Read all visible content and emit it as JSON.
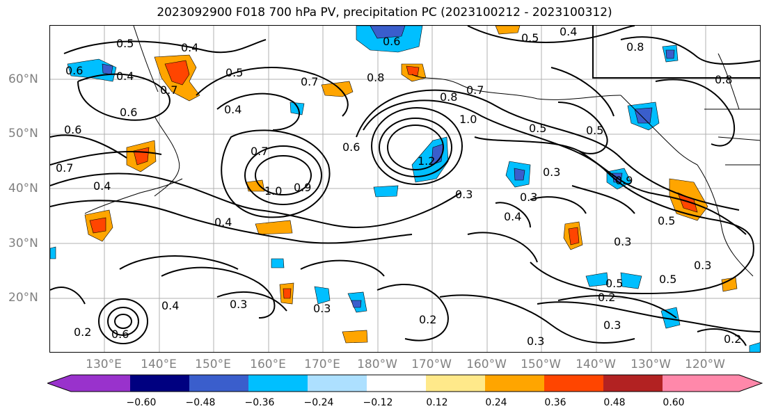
{
  "title": "2023092900 F018 700 hPa PV, precipitation PC (2023100212 - 2023100312)",
  "lat_labels": [
    "60°N",
    "50°N",
    "40°N",
    "30°N",
    "20°N"
  ],
  "lon_labels": [
    "130°E",
    "140°E",
    "150°E",
    "160°E",
    "170°E",
    "180°W",
    "170°W",
    "160°W",
    "150°W",
    "140°W",
    "130°W",
    "120°W"
  ],
  "contour_labels": [
    "0.5",
    "0.4",
    "0.6",
    "0.4",
    "0.7",
    "0.5",
    "0.4",
    "0.7",
    "0.8",
    "0.8",
    "0.7",
    "0.5",
    "0.4",
    "0.6",
    "0.8",
    "0.5",
    "0.6",
    "0.7",
    "0.4",
    "0.6",
    "0.7",
    "1.0",
    "0.9",
    "0.4",
    "0.6",
    "1.0",
    "1.2",
    "0.3",
    "0.5",
    "0.3",
    "0.3",
    "0.4",
    "0.3",
    "0.5",
    "0.3",
    "0.5",
    "0.2",
    "0.3",
    "0.3",
    "0.2",
    "0.3",
    "0.2",
    "0.3",
    "0.8",
    "0.5",
    "0.2",
    "0.6",
    "0.4",
    "0.9"
  ],
  "colorbar": {
    "ticks": [
      "−0.60",
      "−0.48",
      "−0.36",
      "−0.24",
      "−0.12",
      "0.12",
      "0.24",
      "0.36",
      "0.48",
      "0.60"
    ],
    "colors": [
      "#9932CC",
      "#000080",
      "#3A5ECC",
      "#00BFFF",
      "#ADE0FF",
      "#FFFFFF",
      "#FFE98A",
      "#FFA500",
      "#FF4500",
      "#B22222",
      "#FF88AA"
    ]
  }
}
